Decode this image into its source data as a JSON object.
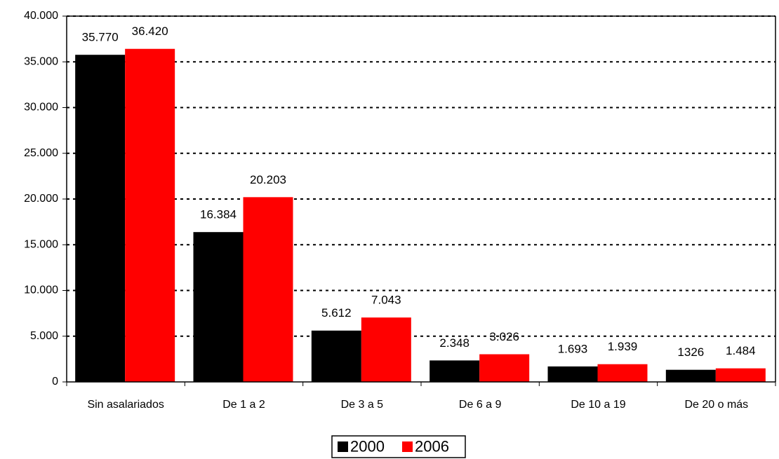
{
  "chart_data": {
    "type": "bar",
    "categories": [
      "Sin asalariados",
      "De 1 a 2",
      "De 3 a 5",
      "De 6 a 9",
      "De 10 a 19",
      "De 20 o más"
    ],
    "series": [
      {
        "name": "2000",
        "color": "#000000",
        "values": [
          35770,
          16384,
          5612,
          2348,
          1693,
          1326
        ],
        "value_labels": [
          "35.770",
          "16.384",
          "5.612",
          "2.348",
          "1.693",
          "1326"
        ]
      },
      {
        "name": "2006",
        "color": "#ff0000",
        "values": [
          36420,
          20203,
          7043,
          3026,
          1939,
          1484
        ],
        "value_labels": [
          "36.420",
          "20.203",
          "7.043",
          "3.026",
          "1.939",
          "1.484"
        ]
      }
    ],
    "ylim": [
      0,
      40000
    ],
    "yticks": [
      0,
      {
        "value": 5000,
        "label": "5.000"
      },
      {
        "value": 10000,
        "label": "10.000"
      },
      {
        "value": 15000,
        "label": "15.000"
      },
      {
        "value": 20000,
        "label": "20.000"
      },
      {
        "value": 25000,
        "label": "25.000"
      },
      {
        "value": 30000,
        "label": "30.000"
      },
      {
        "value": 35000,
        "label": "35.000"
      },
      {
        "value": 40000,
        "label": "40.000"
      }
    ],
    "grid": true,
    "legend": "bottom"
  }
}
